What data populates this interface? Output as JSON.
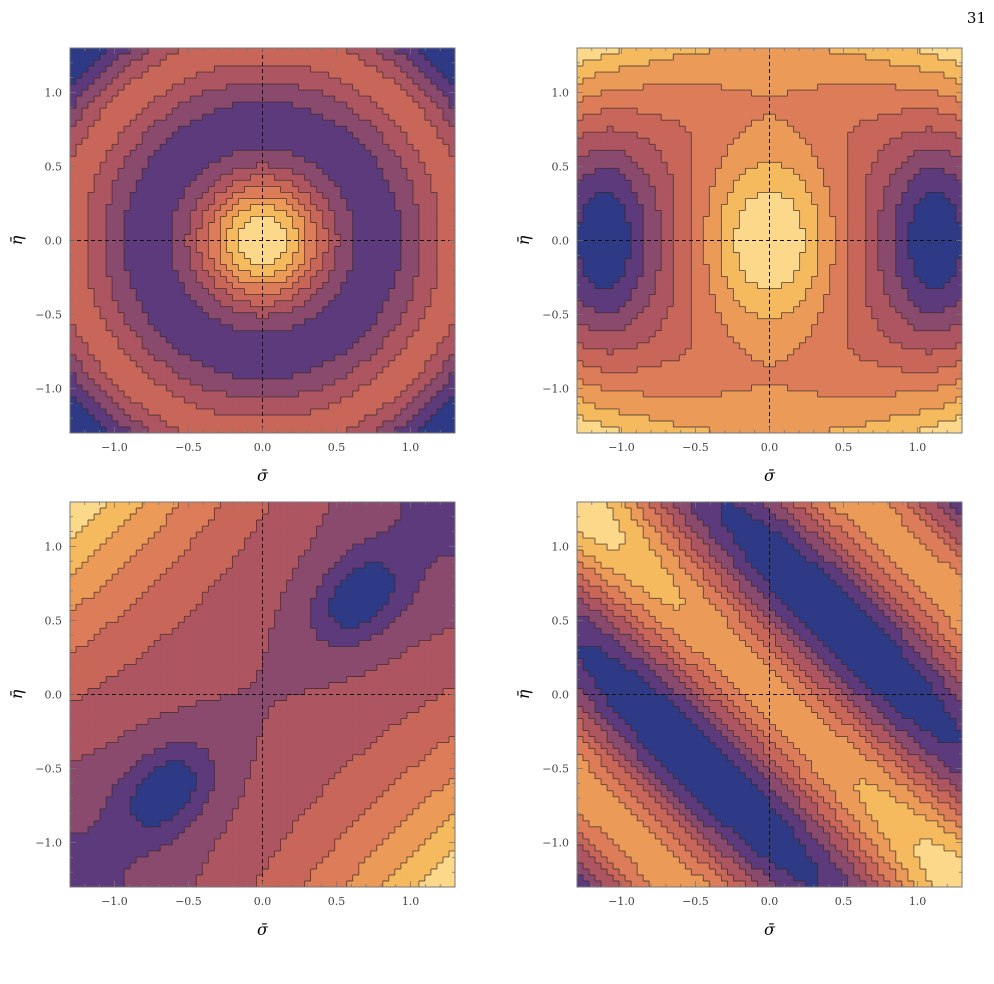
{
  "page_number": "31",
  "tick_labels": [
    "−1.0",
    "−0.5",
    "0.0",
    "0.5",
    "1.0"
  ],
  "chart_data": [
    {
      "type": "heatmap",
      "title": "",
      "xlabel": "σ̄",
      "ylabel": "η̄",
      "xlim": [
        -1.3,
        1.3
      ],
      "ylim": [
        -1.3,
        1.3
      ],
      "xticks": [
        -1.0,
        -0.5,
        0.0,
        0.5,
        1.0
      ],
      "yticks": [
        -1.0,
        -0.5,
        0.0,
        0.5,
        1.0
      ],
      "grid": false,
      "crosshair_at": [
        0,
        0
      ],
      "pattern": "concentric circular contours, maximum at origin, minimum ring near radius 1.1"
    },
    {
      "type": "heatmap",
      "title": "",
      "xlabel": "σ̄",
      "ylabel": "η̄",
      "xlim": [
        -1.3,
        1.3
      ],
      "ylim": [
        -1.3,
        1.3
      ],
      "xticks": [
        -1.0,
        -0.5,
        0.0,
        0.5,
        1.0
      ],
      "yticks": [
        -1.0,
        -0.5,
        0.0,
        0.5,
        1.0
      ],
      "grid": false,
      "crosshair_at": [
        0,
        0
      ],
      "pattern": "elliptical maximum at origin, minima at σ̄ ≈ ±1.1, η̄ = 0"
    },
    {
      "type": "heatmap",
      "title": "",
      "xlabel": "σ̄",
      "ylabel": "η̄",
      "xlim": [
        -1.3,
        1.3
      ],
      "ylim": [
        -1.3,
        1.3
      ],
      "xticks": [
        -1.0,
        -0.5,
        0.0,
        0.5,
        1.0
      ],
      "yticks": [
        -1.0,
        -0.5,
        0.0,
        0.5,
        1.0
      ],
      "grid": false,
      "crosshair_at": [
        0,
        0
      ],
      "pattern": "tilted elliptical minima near (0.75, 0.55) and (-0.75, -0.55); maxima toward top-left and bottom-right"
    },
    {
      "type": "heatmap",
      "title": "",
      "xlabel": "σ̄",
      "ylabel": "η̄",
      "xlim": [
        -1.3,
        1.3
      ],
      "ylim": [
        -1.3,
        1.3
      ],
      "xticks": [
        -1.0,
        -0.5,
        0.0,
        0.5,
        1.0
      ],
      "yticks": [
        -1.0,
        -0.5,
        0.0,
        0.5,
        1.0
      ],
      "grid": false,
      "crosshair_at": [
        0,
        0
      ],
      "pattern": "diagonal bands along σ̄ + η̄ = const; minima bands near σ̄ + η̄ ≈ ±0.9"
    }
  ]
}
